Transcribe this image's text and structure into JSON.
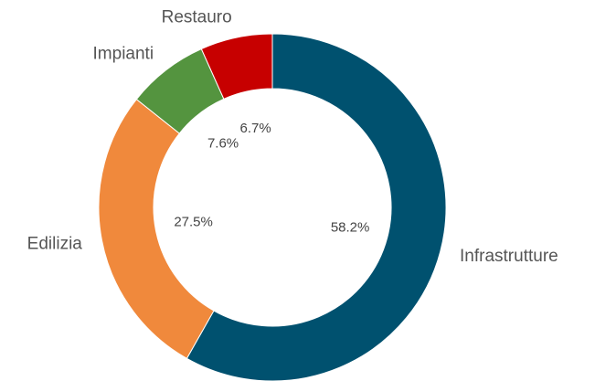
{
  "chart_data": {
    "type": "donut",
    "categories": [
      "Infrastrutture",
      "Edilizia",
      "Impianti",
      "Restauro"
    ],
    "values": [
      58.2,
      27.5,
      7.6,
      6.7
    ],
    "value_labels": [
      "58.2%",
      "27.5%",
      "7.6%",
      "6.7%"
    ],
    "colors": [
      "#00516f",
      "#f0893c",
      "#54943f",
      "#c70000"
    ]
  }
}
